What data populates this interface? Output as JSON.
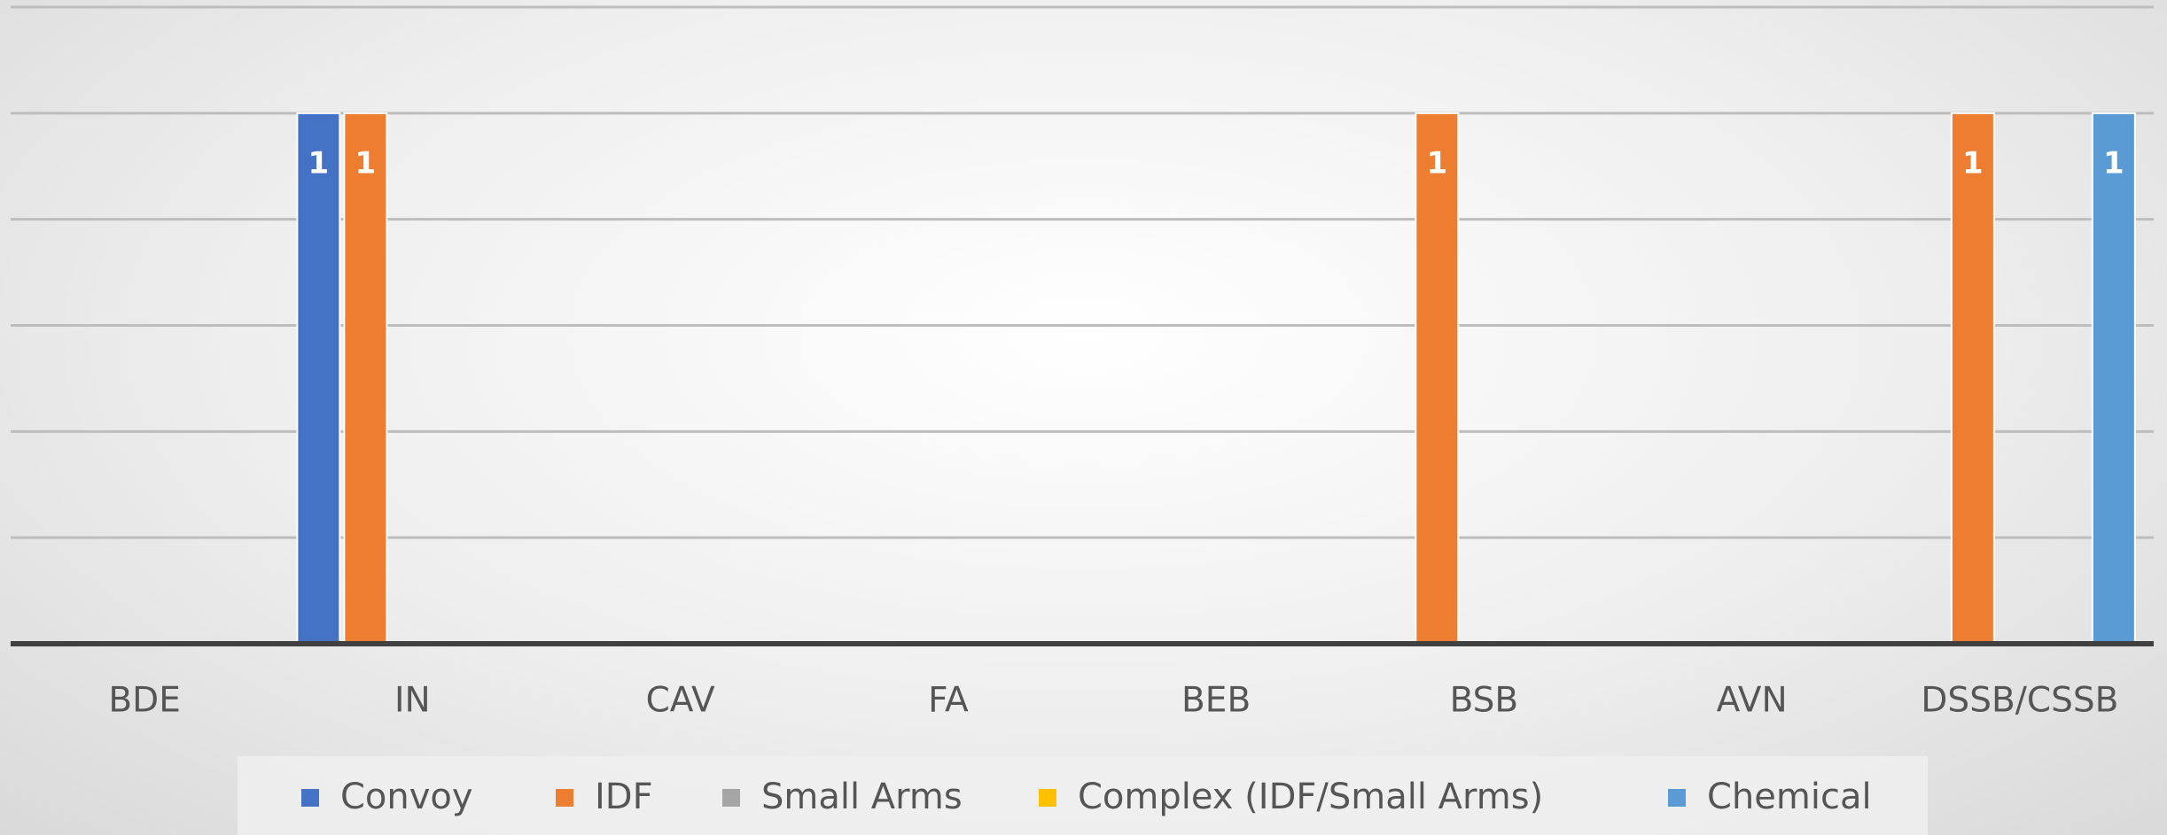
{
  "chart_data": {
    "type": "bar",
    "categories": [
      "BDE",
      "IN",
      "CAV",
      "FA",
      "BEB",
      "BSB",
      "AVN",
      "DSSB/CSSB"
    ],
    "series": [
      {
        "name": "Convoy",
        "color": "#4472c4",
        "values": [
          null,
          1,
          null,
          null,
          null,
          null,
          null,
          null
        ]
      },
      {
        "name": "IDF",
        "color": "#ed7d31",
        "values": [
          null,
          1,
          null,
          null,
          null,
          1,
          null,
          1
        ]
      },
      {
        "name": "Small Arms",
        "color": "#a5a5a5",
        "values": [
          null,
          null,
          null,
          null,
          null,
          null,
          null,
          null
        ]
      },
      {
        "name": "Complex (IDF/Small Arms)",
        "color": "#ffc000",
        "values": [
          null,
          null,
          null,
          null,
          null,
          null,
          null,
          null
        ]
      },
      {
        "name": "Chemical",
        "color": "#5b9bd5",
        "values": [
          null,
          null,
          null,
          null,
          null,
          null,
          null,
          1
        ]
      }
    ],
    "ylim": [
      0,
      1.2
    ],
    "yticks": [
      0,
      0.2,
      0.4,
      0.6,
      0.8,
      1,
      1.2
    ],
    "grid": true,
    "legend": "bottom"
  }
}
